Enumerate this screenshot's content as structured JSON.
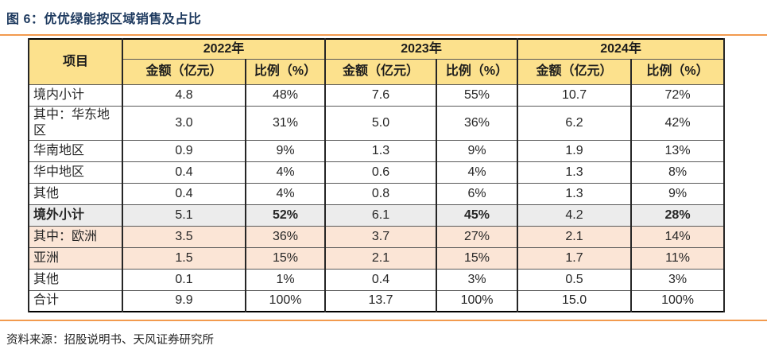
{
  "figure": {
    "title": "图 6：优优绿能按区域销售及占比",
    "source": "资料来源：招股说明书、天风证券研究所"
  },
  "colors": {
    "accent_orange": "#F29A4E",
    "title_navy": "#1E3A5F",
    "header_yellow": "#FCE18D",
    "percent_red": "#C01515",
    "subtotal_gray_bg": "#ECECEC",
    "highlight_peach_bg": "#FBE5D6"
  },
  "table": {
    "item_header": "项目",
    "year_headers": [
      "2022年",
      "2023年",
      "2024年"
    ],
    "sub_headers": [
      "金额（亿元）",
      "比例（%）"
    ],
    "rows": [
      {
        "label": "境内小计",
        "style": "plain",
        "values": [
          "4.8",
          "48%",
          "7.6",
          "55%",
          "10.7",
          "72%"
        ]
      },
      {
        "label": "其中：华东地区",
        "style": "plain",
        "values": [
          "3.0",
          "31%",
          "5.0",
          "36%",
          "6.2",
          "42%"
        ]
      },
      {
        "label": "华南地区",
        "style": "plain",
        "values": [
          "0.9",
          "9%",
          "1.3",
          "9%",
          "1.9",
          "13%"
        ]
      },
      {
        "label": "华中地区",
        "style": "plain",
        "values": [
          "0.4",
          "4%",
          "0.6",
          "4%",
          "1.3",
          "8%"
        ]
      },
      {
        "label": "其他",
        "style": "plain",
        "values": [
          "0.4",
          "4%",
          "0.8",
          "6%",
          "1.3",
          "9%"
        ]
      },
      {
        "label": "境外小计",
        "style": "subtotal",
        "values": [
          "5.1",
          "52%",
          "6.1",
          "45%",
          "4.2",
          "28%"
        ]
      },
      {
        "label": "其中：欧洲",
        "style": "peach",
        "values": [
          "3.5",
          "36%",
          "3.7",
          "27%",
          "2.1",
          "14%"
        ]
      },
      {
        "label": "亚洲",
        "style": "peach",
        "values": [
          "1.5",
          "15%",
          "2.1",
          "15%",
          "1.7",
          "11%"
        ]
      },
      {
        "label": "其他",
        "style": "plain",
        "values": [
          "0.1",
          "1%",
          "0.4",
          "3%",
          "0.5",
          "3%"
        ]
      },
      {
        "label": "合计",
        "style": "plain",
        "values": [
          "9.9",
          "100%",
          "13.7",
          "100%",
          "15.0",
          "100%"
        ]
      }
    ]
  }
}
